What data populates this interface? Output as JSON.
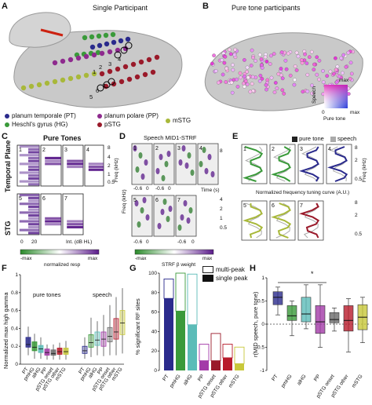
{
  "panels": {
    "A": {
      "letter": "A",
      "title": "Single Participant"
    },
    "B": {
      "letter": "B",
      "title": "Pure tone participants",
      "colormap": {
        "max_label": "max",
        "y_label": "Speech",
        "x_label": "Pure tone",
        "zero_label": "0"
      }
    },
    "C": {
      "letter": "C",
      "title": "Pure Tones",
      "row_labels": [
        "Temporal Plane",
        "STG"
      ],
      "x_ticks": [
        "0",
        "20"
      ],
      "x_label": "Int. (dB HL)",
      "y_label": "Freq (kHz)",
      "y_ticks": [
        "8",
        "4",
        "2",
        "1",
        "0.5"
      ],
      "numbers": [
        "1",
        "2",
        "3",
        "4",
        "5",
        "6",
        "7"
      ],
      "colorbar": {
        "left": "-max",
        "right": "max",
        "label": "normalized resp"
      }
    },
    "D": {
      "letter": "D",
      "title": "Speech MID1-STRF",
      "x_ticks": [
        "-0.6",
        "0",
        "-0.6",
        "0",
        "-0.6",
        "0",
        "-0.6",
        "0"
      ],
      "x_label": "Time (s)",
      "y_label": "Freq (kHz)",
      "y_ticks": [
        "8",
        "4",
        "2",
        "1",
        "0.5"
      ],
      "numbers": [
        "1",
        "2",
        "3",
        "4",
        "5",
        "6",
        "7"
      ],
      "colorbar": {
        "left": "-max",
        "right": "max",
        "label": "STRF β weight"
      }
    },
    "E": {
      "letter": "E",
      "legend": [
        "pure tone",
        "speech"
      ],
      "y_label": "Freq (kHz)",
      "y_ticks": [
        "8",
        "4",
        "2",
        "1",
        "0.5"
      ],
      "x_label": "Normalized frequency tuning curve (A.U.)",
      "numbers": [
        "1",
        "2",
        "3",
        "4",
        "5",
        "6",
        "7"
      ]
    },
    "F": {
      "letter": "F",
      "y_label": "Normalized max high gamma",
      "groups": [
        "pure tones",
        "speech"
      ],
      "y_ticks": [
        "1",
        "0.8",
        "0.6",
        "0.4",
        "0.2",
        "0"
      ],
      "x_labels": [
        "PT",
        "pmHG",
        "alHG",
        "PP",
        "pSTG onset",
        "pSTG other",
        "mSTG"
      ]
    },
    "G": {
      "letter": "G",
      "y_label": "% significant RF sites",
      "legend": [
        "multi-peak",
        "single peak"
      ],
      "y_ticks": [
        "100",
        "80",
        "60",
        "40",
        "20",
        "0"
      ],
      "x_labels": [
        "PT",
        "pmHG",
        "alHG",
        "PP",
        "pSTG onset",
        "pSTG other",
        "mSTG"
      ]
    },
    "H": {
      "letter": "H",
      "y_label": "r(MID speech, pure tone)",
      "y_ticks": [
        "1",
        "0.5",
        "0",
        "-0.5",
        "-1"
      ],
      "x_labels": [
        "PT",
        "pmHG",
        "alHG",
        "PP",
        "pSTG onset",
        "pSTG other",
        "mSTG"
      ],
      "sig_marker": "*"
    }
  },
  "legend_A": [
    {
      "label": "planum temporale (PT)",
      "color": "#2a2a8c"
    },
    {
      "label": "planum polare (PP)",
      "color": "#8e2a8e"
    },
    {
      "label": "mSTG",
      "color": "#a8b83a"
    },
    {
      "label": "Heschl's gyrus (HG)",
      "color": "#3a9a3a"
    },
    {
      "label": "pSTG",
      "color": "#9a1a2a"
    }
  ],
  "A_numbers": [
    "1",
    "2",
    "3",
    "4",
    "5",
    "6",
    "7"
  ],
  "chart_data": [
    {
      "type": "bar",
      "title": "",
      "ylabel": "% significant RF sites",
      "categories": [
        "PT",
        "pmHG",
        "alHG",
        "PP",
        "pSTG onset",
        "pSTG other",
        "mSTG"
      ],
      "colors": [
        "#2a2a8c",
        "#3a9a3a",
        "#5bbcb8",
        "#a33aa8",
        "#9a1a2a",
        "#b81a2a",
        "#c8c83a"
      ],
      "ylim": [
        0,
        100
      ],
      "series": [
        {
          "name": "single peak",
          "values": [
            74,
            61,
            47,
            10,
            10,
            13,
            7
          ]
        },
        {
          "name": "multi-peak",
          "values": [
            20,
            39,
            52,
            17,
            28,
            14,
            17
          ]
        }
      ]
    },
    {
      "type": "box",
      "title": "",
      "ylabel": "Normalized max high gamma",
      "groups": [
        "pure tones",
        "speech"
      ],
      "categories": [
        "PT",
        "pmHG",
        "alHG",
        "PP",
        "pSTG onset",
        "pSTG other",
        "mSTG"
      ],
      "colors": [
        "#2a2a8c",
        "#3a9a3a",
        "#5bbcb8",
        "#a33aa8",
        "#6a6a6a",
        "#b81a2a",
        "#c8c83a"
      ],
      "ylim": [
        0,
        1
      ],
      "pure_tones": [
        {
          "q1": 0.19,
          "med": 0.22,
          "q3": 0.3,
          "lo": 0.1,
          "hi": 0.42
        },
        {
          "q1": 0.15,
          "med": 0.19,
          "q3": 0.25,
          "lo": 0.06,
          "hi": 0.34
        },
        {
          "q1": 0.13,
          "med": 0.17,
          "q3": 0.21,
          "lo": 0.06,
          "hi": 0.3
        },
        {
          "q1": 0.1,
          "med": 0.13,
          "q3": 0.17,
          "lo": 0.05,
          "hi": 0.22
        },
        {
          "q1": 0.1,
          "med": 0.12,
          "q3": 0.16,
          "lo": 0.05,
          "hi": 0.22
        },
        {
          "q1": 0.11,
          "med": 0.14,
          "q3": 0.18,
          "lo": 0.05,
          "hi": 0.24
        },
        {
          "q1": 0.11,
          "med": 0.14,
          "q3": 0.18,
          "lo": 0.05,
          "hi": 0.26
        }
      ],
      "speech": [
        {
          "q1": 0.12,
          "med": 0.15,
          "q3": 0.2,
          "lo": 0.06,
          "hi": 0.3
        },
        {
          "q1": 0.19,
          "med": 0.24,
          "q3": 0.33,
          "lo": 0.08,
          "hi": 0.52
        },
        {
          "q1": 0.21,
          "med": 0.27,
          "q3": 0.36,
          "lo": 0.1,
          "hi": 0.48
        },
        {
          "q1": 0.2,
          "med": 0.28,
          "q3": 0.36,
          "lo": 0.09,
          "hi": 0.55
        },
        {
          "q1": 0.25,
          "med": 0.31,
          "q3": 0.41,
          "lo": 0.1,
          "hi": 0.66
        },
        {
          "q1": 0.28,
          "med": 0.36,
          "q3": 0.51,
          "lo": 0.1,
          "hi": 0.75
        },
        {
          "q1": 0.33,
          "med": 0.46,
          "q3": 0.6,
          "lo": 0.12,
          "hi": 0.85
        }
      ]
    },
    {
      "type": "box",
      "title": "",
      "ylabel": "r(MID speech, pure tone)",
      "categories": [
        "PT",
        "pmHG",
        "alHG",
        "PP",
        "pSTG onset",
        "pSTG other",
        "mSTG"
      ],
      "colors": [
        "#2a2a8c",
        "#3a9a3a",
        "#5bbcb8",
        "#a33aa8",
        "#6a6a6a",
        "#b81a2a",
        "#c8c83a"
      ],
      "ylim": [
        -1,
        1
      ],
      "boxes": [
        {
          "q1": 0.42,
          "med": 0.58,
          "q3": 0.7,
          "lo": 0.2,
          "hi": 0.8
        },
        {
          "q1": 0.08,
          "med": 0.18,
          "q3": 0.4,
          "lo": -0.25,
          "hi": 0.5
        },
        {
          "q1": 0.05,
          "med": 0.22,
          "q3": 0.58,
          "lo": -0.1,
          "hi": 0.85
        },
        {
          "q1": -0.2,
          "med": 0.05,
          "q3": 0.4,
          "lo": -0.5,
          "hi": 0.85
        },
        {
          "q1": 0.03,
          "med": 0.1,
          "q3": 0.25,
          "lo": -0.15,
          "hi": 0.35
        },
        {
          "q1": -0.15,
          "med": 0.08,
          "q3": 0.4,
          "lo": -0.6,
          "hi": 0.55
        },
        {
          "q1": -0.12,
          "med": 0.15,
          "q3": 0.42,
          "lo": -0.4,
          "hi": 0.58
        }
      ]
    }
  ]
}
